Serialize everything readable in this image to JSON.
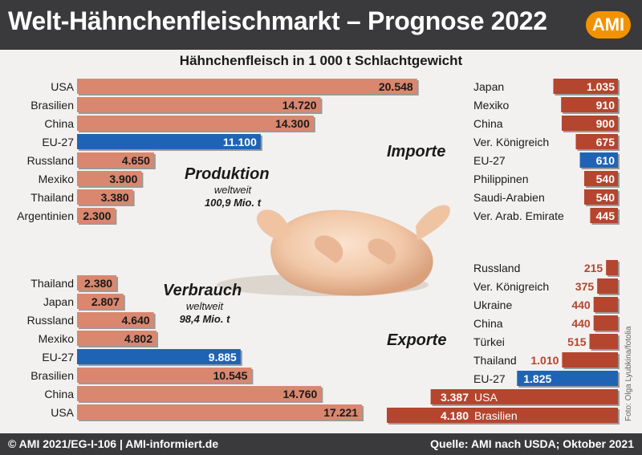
{
  "header": {
    "title": "Welt-Hähnchenfleischmarkt – Prognose 2022",
    "logo": "AMI"
  },
  "subtitle": "Hähnchenfleisch in 1 000 t Schlachtgewicht",
  "footer": {
    "left": "© AMI 2021/EG-I-106 | AMI-informiert.de",
    "right": "Quelle: AMI nach USDA; Oktober 2021"
  },
  "photo_credit": "Foto: Olga Lyubkina/fotolia",
  "colors": {
    "bar": "#d9876f",
    "highlight": "#1f64b4",
    "dark": "#b4452e",
    "header": "#3a3a3c",
    "panel": "#f2f1ef",
    "logo": "#f39200"
  },
  "notes": {
    "produktion": {
      "title": "Produktion",
      "line1": "weltweit",
      "line2": "100,9 Mio. t"
    },
    "verbrauch": {
      "title": "Verbrauch",
      "line1": "weltweit",
      "line2": "98,4 Mio. t"
    },
    "importe": {
      "title": "Importe"
    },
    "exporte": {
      "title": "Exporte"
    }
  },
  "chart_data": [
    {
      "type": "bar",
      "title": "Produktion",
      "categories": [
        "USA",
        "Brasilien",
        "China",
        "EU-27",
        "Russland",
        "Mexiko",
        "Thailand",
        "Argentinien"
      ],
      "values": [
        20548,
        14720,
        14300,
        11100,
        4650,
        3900,
        3380,
        2300
      ],
      "labels": [
        "20.548",
        "14.720",
        "14.300",
        "11.100",
        "4.650",
        "3.900",
        "3.380",
        "2.300"
      ],
      "highlight": "EU-27"
    },
    {
      "type": "bar",
      "title": "Verbrauch",
      "categories": [
        "Thailand",
        "Japan",
        "Russland",
        "Mexiko",
        "EU-27",
        "Brasilien",
        "China",
        "USA"
      ],
      "values": [
        2380,
        2807,
        4640,
        4802,
        9885,
        10545,
        14760,
        17221
      ],
      "labels": [
        "2.380",
        "2.807",
        "4.640",
        "4.802",
        "9.885",
        "10.545",
        "14.760",
        "17.221"
      ],
      "highlight": "EU-27"
    },
    {
      "type": "bar",
      "title": "Importe",
      "categories": [
        "Japan",
        "Mexiko",
        "China",
        "Ver. Königreich",
        "EU-27",
        "Philippinen",
        "Saudi-Arabien",
        "Ver. Arab. Emirate"
      ],
      "values": [
        1035,
        910,
        900,
        675,
        610,
        540,
        540,
        445
      ],
      "labels": [
        "1.035",
        "910",
        "900",
        "675",
        "610",
        "540",
        "540",
        "445"
      ],
      "highlight": "EU-27"
    },
    {
      "type": "bar",
      "title": "Exporte",
      "categories": [
        "Russland",
        "Ver. Königreich",
        "Ukraine",
        "China",
        "Türkei",
        "Thailand",
        "EU-27",
        "USA",
        "Brasilien"
      ],
      "values": [
        215,
        375,
        440,
        440,
        515,
        1010,
        1825,
        3387,
        4180
      ],
      "labels": [
        "215",
        "375",
        "440",
        "440",
        "515",
        "1.010",
        "1.825",
        "3.387",
        "4.180"
      ],
      "highlight": "EU-27"
    }
  ]
}
